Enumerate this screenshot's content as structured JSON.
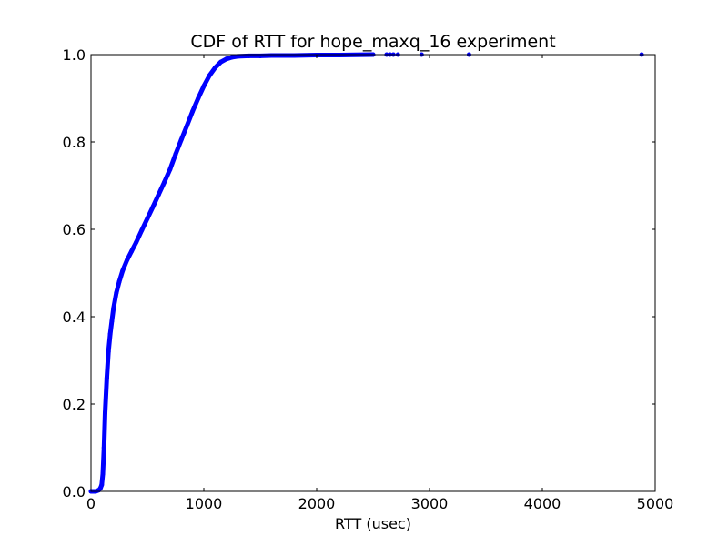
{
  "chart_data": {
    "type": "line",
    "title": "CDF of RTT for hope_maxq_16 experiment",
    "xlabel": "RTT (usec)",
    "ylabel": "",
    "xlim": [
      0,
      5000
    ],
    "ylim": [
      0.0,
      1.0
    ],
    "xticks": [
      0,
      1000,
      2000,
      3000,
      4000,
      5000
    ],
    "xtick_labels": [
      "0",
      "1000",
      "2000",
      "3000",
      "4000",
      "5000"
    ],
    "yticks": [
      0.0,
      0.2,
      0.4,
      0.6,
      0.8,
      1.0
    ],
    "ytick_labels": [
      "0.0",
      "0.2",
      "0.4",
      "0.6",
      "0.8",
      "1.0"
    ],
    "grid": false,
    "legend": false,
    "series": [
      {
        "color": "#0000ff",
        "marker": "dot",
        "x": [
          0,
          40,
          70,
          85,
          95,
          105,
          115,
          125,
          140,
          155,
          170,
          185,
          200,
          225,
          250,
          280,
          320,
          360,
          400,
          450,
          500,
          550,
          600,
          650,
          700,
          750,
          800,
          850,
          900,
          950,
          1000,
          1050,
          1100,
          1150,
          1200,
          1250,
          1300,
          1400,
          1500,
          1600,
          1800,
          2000,
          2200,
          2500
        ],
        "y": [
          0.0,
          0.0,
          0.003,
          0.008,
          0.015,
          0.04,
          0.1,
          0.18,
          0.26,
          0.32,
          0.36,
          0.39,
          0.42,
          0.455,
          0.48,
          0.505,
          0.53,
          0.55,
          0.57,
          0.598,
          0.625,
          0.652,
          0.68,
          0.708,
          0.737,
          0.772,
          0.805,
          0.837,
          0.87,
          0.9,
          0.928,
          0.952,
          0.97,
          0.983,
          0.99,
          0.994,
          0.996,
          0.997,
          0.997,
          0.998,
          0.998,
          0.999,
          0.999,
          1.0
        ]
      }
    ],
    "outliers": {
      "x": [
        2620,
        2650,
        2680,
        2720,
        2930,
        3350,
        4880
      ],
      "y": [
        1.0,
        1.0,
        1.0,
        1.0,
        1.0,
        1.0,
        1.0
      ]
    }
  }
}
